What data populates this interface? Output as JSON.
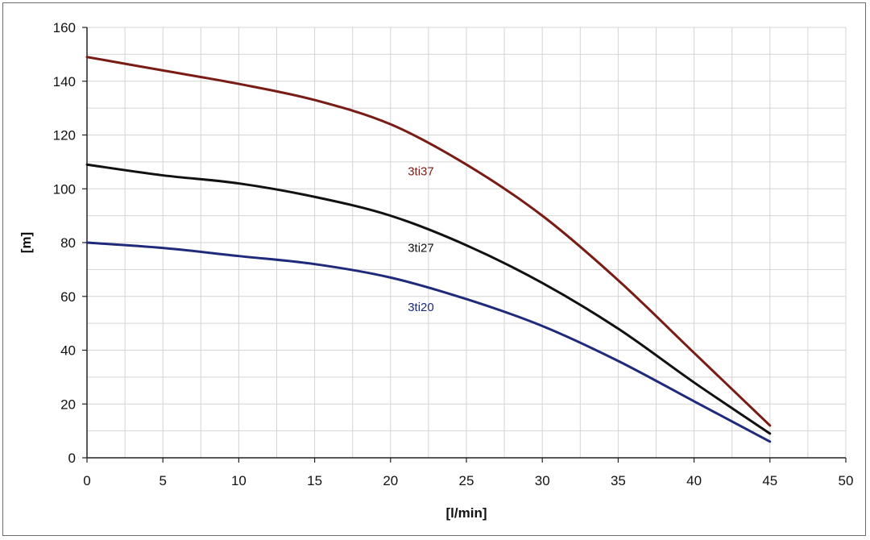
{
  "chart_data": {
    "type": "line",
    "xlabel": "[l/min]",
    "ylabel": "[m]",
    "xlim": [
      0,
      50
    ],
    "ylim": [
      0,
      160
    ],
    "x_ticks": [
      "0",
      "5",
      "10",
      "15",
      "20",
      "25",
      "30",
      "35",
      "40",
      "45",
      "50"
    ],
    "y_ticks": [
      "0",
      "20",
      "40",
      "60",
      "80",
      "100",
      "120",
      "140",
      "160"
    ],
    "grid": true,
    "legend": "none",
    "series": [
      {
        "name": "3ti37",
        "color": "#7a1c16",
        "label_at": [
          22,
          105
        ],
        "points": [
          [
            0,
            149
          ],
          [
            5,
            144
          ],
          [
            10,
            139
          ],
          [
            15,
            133
          ],
          [
            20,
            124
          ],
          [
            25,
            109
          ],
          [
            30,
            90
          ],
          [
            35,
            66
          ],
          [
            40,
            39
          ],
          [
            45,
            12
          ]
        ]
      },
      {
        "name": "3ti27",
        "color": "#111111",
        "label_at": [
          22,
          76.5
        ],
        "points": [
          [
            0,
            109
          ],
          [
            5,
            105
          ],
          [
            10,
            102
          ],
          [
            15,
            97
          ],
          [
            20,
            90
          ],
          [
            25,
            79
          ],
          [
            30,
            65
          ],
          [
            35,
            48
          ],
          [
            40,
            28
          ],
          [
            45,
            9
          ]
        ]
      },
      {
        "name": "3ti20",
        "color": "#1f2a7a",
        "label_at": [
          22,
          54.5
        ],
        "points": [
          [
            0,
            80
          ],
          [
            5,
            78
          ],
          [
            10,
            75
          ],
          [
            15,
            72
          ],
          [
            20,
            67
          ],
          [
            25,
            59
          ],
          [
            30,
            49
          ],
          [
            35,
            36
          ],
          [
            40,
            21
          ],
          [
            45,
            6
          ]
        ]
      }
    ]
  }
}
